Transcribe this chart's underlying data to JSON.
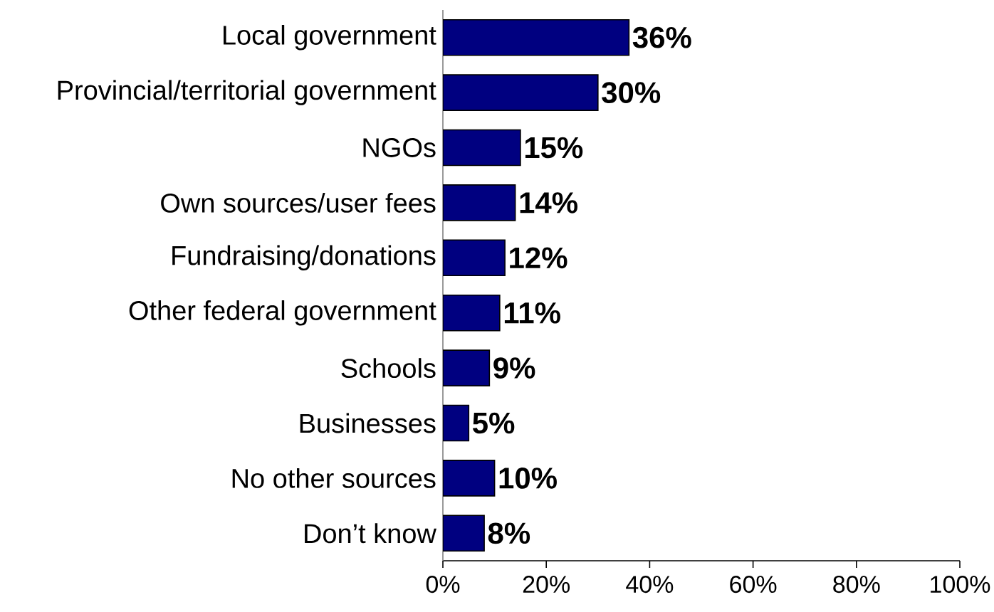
{
  "chart_data": {
    "type": "bar",
    "orientation": "horizontal",
    "categories": [
      "Local government",
      "Provincial/territorial government",
      "NGOs",
      "Own sources/user fees",
      "Fundraising/donations",
      "Other federal government",
      "Schools",
      "Businesses",
      "No other sources",
      "Don’t know"
    ],
    "values": [
      36,
      30,
      15,
      14,
      12,
      11,
      9,
      5,
      10,
      8
    ],
    "value_labels": [
      "36%",
      "30%",
      "15%",
      "14%",
      "12%",
      "11%",
      "9%",
      "5%",
      "10%",
      "8%"
    ],
    "color": "#000080",
    "xlim": [
      0,
      100
    ],
    "xticks": [
      {
        "value": 0,
        "label": "0%"
      },
      {
        "value": 20,
        "label": "20%"
      },
      {
        "value": 40,
        "label": "40%"
      },
      {
        "value": 60,
        "label": "60%"
      },
      {
        "value": 80,
        "label": "80%"
      },
      {
        "value": 100,
        "label": "100%"
      }
    ],
    "grid": false
  }
}
